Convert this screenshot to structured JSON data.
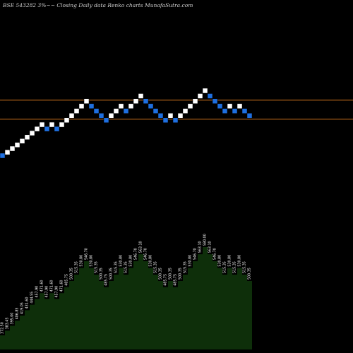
{
  "title": "BSE 543282  3%~~ Closing Daily data  Renko  charts MunafaSutra.com",
  "chart_data": {
    "type": "renko",
    "title": "BSE 543282  3%~~ Closing Daily data  Renko  charts MunafaSutra.com",
    "brick_size_pct": 3,
    "bricks": [
      {
        "dir": "down",
        "value": 372.5
      },
      {
        "dir": "up",
        "value": 383.45
      },
      {
        "dir": "up",
        "value": 395.0
      },
      {
        "dir": "up",
        "value": 406.85
      },
      {
        "dir": "up",
        "value": 419.05
      },
      {
        "dir": "up",
        "value": 431.6
      },
      {
        "dir": "up",
        "value": 444.55
      },
      {
        "dir": "up",
        "value": 457.9
      },
      {
        "dir": "up",
        "value": 471.6
      },
      {
        "dir": "down",
        "value": 457.9
      },
      {
        "dir": "up",
        "value": 471.6
      },
      {
        "dir": "down",
        "value": 457.9
      },
      {
        "dir": "up",
        "value": 471.6
      },
      {
        "dir": "up",
        "value": 485.75
      },
      {
        "dir": "up",
        "value": 500.35
      },
      {
        "dir": "up",
        "value": 515.35
      },
      {
        "dir": "up",
        "value": 530.8
      },
      {
        "dir": "up",
        "value": 546.7
      },
      {
        "dir": "down",
        "value": 530.8
      },
      {
        "dir": "down",
        "value": 515.35
      },
      {
        "dir": "down",
        "value": 500.35
      },
      {
        "dir": "down",
        "value": 485.75
      },
      {
        "dir": "up",
        "value": 500.35
      },
      {
        "dir": "up",
        "value": 515.35
      },
      {
        "dir": "up",
        "value": 530.8
      },
      {
        "dir": "down",
        "value": 515.35
      },
      {
        "dir": "up",
        "value": 530.8
      },
      {
        "dir": "up",
        "value": 546.7
      },
      {
        "dir": "up",
        "value": 563.1
      },
      {
        "dir": "down",
        "value": 546.7
      },
      {
        "dir": "down",
        "value": 530.8
      },
      {
        "dir": "down",
        "value": 515.35
      },
      {
        "dir": "down",
        "value": 500.35
      },
      {
        "dir": "down",
        "value": 485.75
      },
      {
        "dir": "up",
        "value": 500.35
      },
      {
        "dir": "down",
        "value": 485.75
      },
      {
        "dir": "up",
        "value": 500.35
      },
      {
        "dir": "up",
        "value": 515.35
      },
      {
        "dir": "up",
        "value": 530.8
      },
      {
        "dir": "up",
        "value": 546.7
      },
      {
        "dir": "up",
        "value": 563.1
      },
      {
        "dir": "up",
        "value": 580.0
      },
      {
        "dir": "down",
        "value": 563.1
      },
      {
        "dir": "down",
        "value": 546.7
      },
      {
        "dir": "down",
        "value": 530.8
      },
      {
        "dir": "down",
        "value": 515.35
      },
      {
        "dir": "up",
        "value": 530.8
      },
      {
        "dir": "down",
        "value": 515.35
      },
      {
        "dir": "up",
        "value": 530.8
      },
      {
        "dir": "down",
        "value": 515.35
      },
      {
        "dir": "down",
        "value": 500.35
      }
    ],
    "reference_lines": [
      546.7,
      485.75
    ],
    "labels": [
      "372.50",
      "383.45",
      "395.00",
      "406.85",
      "419.05",
      "431.60",
      "444.55",
      "457.90",
      "471.60",
      "457.90",
      "471.60",
      "457.90",
      "471.60",
      "485.75",
      "500.35",
      "515.35",
      "530.80",
      "546.70",
      "530.80",
      "515.35",
      "500.35",
      "485.75",
      "500.35",
      "515.35",
      "530.80",
      "515.35",
      "530.80",
      "546.70",
      "563.10",
      "546.70",
      "530.80",
      "515.35",
      "500.35",
      "485.75",
      "500.35",
      "485.75",
      "500.35",
      "515.35",
      "530.80",
      "546.70",
      "563.10",
      "580.00",
      "563.10",
      "546.70",
      "530.80",
      "515.35",
      "530.80",
      "515.35",
      "530.80",
      "515.35",
      "500.35"
    ],
    "colors": {
      "up": "#ffffff",
      "down": "#1e6fe0",
      "line": "#c06a1a",
      "area": "#0e2f0a",
      "background": "#000000"
    },
    "grid": false
  }
}
